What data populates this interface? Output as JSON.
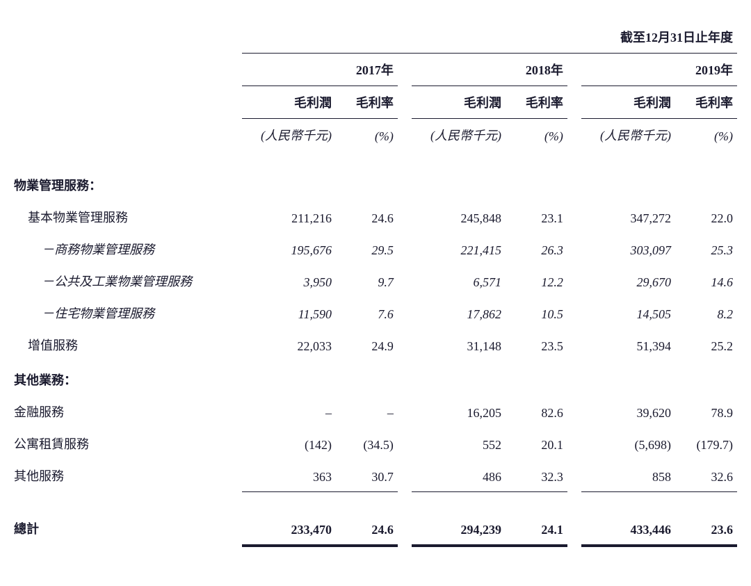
{
  "header": {
    "super": "截至12月31日止年度",
    "years": [
      "2017年",
      "2018年",
      "2019年"
    ],
    "metrics": [
      "毛利潤",
      "毛利率"
    ],
    "units": [
      "(人民幣千元)",
      "(%)"
    ]
  },
  "sections": [
    {
      "title": "物業管理服務：",
      "rows": [
        {
          "label": "基本物業管理服務",
          "indent": 1,
          "italic": false,
          "values": [
            "211,216",
            "24.6",
            "245,848",
            "23.1",
            "347,272",
            "22.0"
          ]
        },
        {
          "label": "－商務物業管理服務",
          "indent": 2,
          "italic": true,
          "values": [
            "195,676",
            "29.5",
            "221,415",
            "26.3",
            "303,097",
            "25.3"
          ]
        },
        {
          "label": "－公共及工業物業管理服務",
          "indent": 2,
          "italic": true,
          "values": [
            "3,950",
            "9.7",
            "6,571",
            "12.2",
            "29,670",
            "14.6"
          ]
        },
        {
          "label": "－住宅物業管理服務",
          "indent": 2,
          "italic": true,
          "values": [
            "11,590",
            "7.6",
            "17,862",
            "10.5",
            "14,505",
            "8.2"
          ]
        },
        {
          "label": "增值服務",
          "indent": 1,
          "italic": false,
          "values": [
            "22,033",
            "24.9",
            "31,148",
            "23.5",
            "51,394",
            "25.2"
          ]
        }
      ]
    },
    {
      "title": "其他業務：",
      "rows": [
        {
          "label": "金融服務",
          "indent": 0,
          "italic": false,
          "values": [
            "–",
            "–",
            "16,205",
            "82.6",
            "39,620",
            "78.9"
          ]
        },
        {
          "label": "公寓租賃服務",
          "indent": 0,
          "italic": false,
          "values": [
            "(142)",
            "(34.5)",
            "552",
            "20.1",
            "(5,698)",
            "(179.7)"
          ]
        },
        {
          "label": "其他服務",
          "indent": 0,
          "italic": false,
          "underline": true,
          "values": [
            "363",
            "30.7",
            "486",
            "32.3",
            "858",
            "32.6"
          ]
        }
      ]
    }
  ],
  "total": {
    "label": "總計",
    "values": [
      "233,470",
      "24.6",
      "294,239",
      "24.1",
      "433,446",
      "23.6"
    ]
  },
  "style": {
    "text_color": "#1a1a2e",
    "background": "#ffffff",
    "font_size_pt": 18,
    "border_color": "#1a1a2e"
  }
}
